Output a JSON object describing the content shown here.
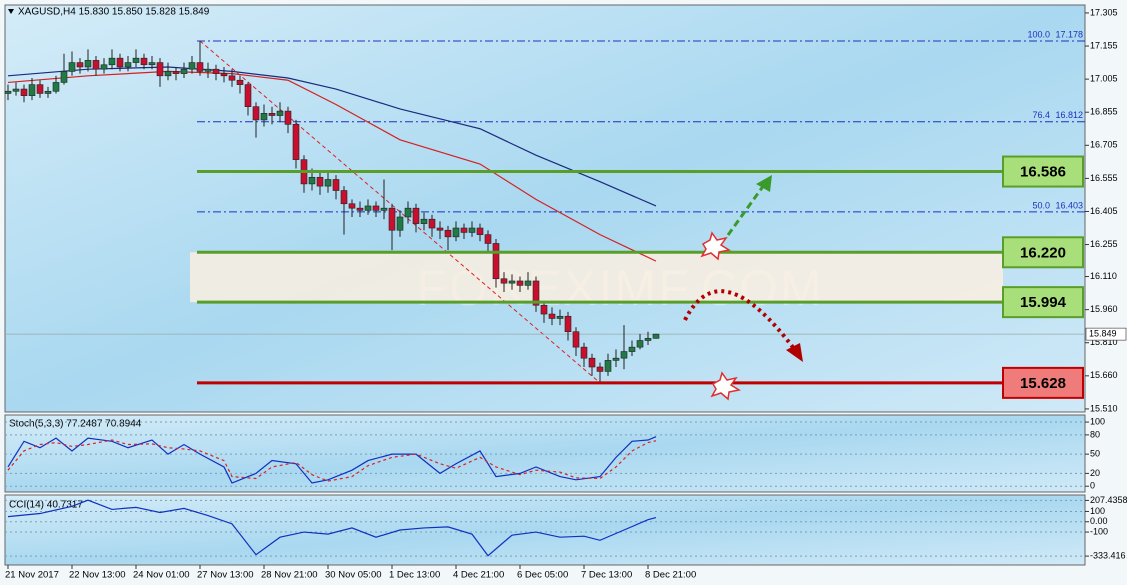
{
  "chart_data": [
    {
      "type": "candlestick",
      "title": "XAGUSD,H4  15.830 15.850 15.828 15.849",
      "watermark": "FOREXIMF.COM",
      "categories": [
        "21 Nov 2017",
        null,
        null,
        null,
        null,
        null,
        null,
        null,
        "22 Nov 13:00",
        null,
        null,
        null,
        null,
        null,
        null,
        null,
        "24 Nov 01:00",
        null,
        null,
        null,
        null,
        null,
        null,
        null,
        "27 Nov 13:00",
        null,
        null,
        null,
        null,
        null,
        null,
        null,
        "28 Nov 21:00",
        null,
        null,
        null,
        null,
        null,
        null,
        null,
        "30 Nov 05:00",
        null,
        null,
        null,
        null,
        null,
        null,
        null,
        "1 Dec 13:00",
        null,
        null,
        null,
        null,
        null,
        null,
        null,
        "4 Dec 21:00",
        null,
        null,
        null,
        null,
        null,
        null,
        null,
        "6 Dec 05:00",
        null,
        null,
        null,
        null,
        null,
        null,
        null,
        "7 Dec 13:00",
        null,
        null,
        null,
        null,
        null,
        null,
        null,
        "8 Dec 21:00",
        null
      ],
      "open": [
        16.94,
        16.95,
        16.96,
        16.93,
        16.98,
        16.94,
        16.95,
        16.99,
        17.04,
        17.08,
        17.06,
        17.09,
        17.05,
        17.07,
        17.1,
        17.06,
        17.08,
        17.1,
        17.07,
        17.08,
        17.02,
        17.04,
        17.03,
        17.05,
        17.08,
        17.04,
        17.05,
        17.03,
        17.02,
        17,
        16.98,
        16.88,
        16.82,
        16.85,
        16.84,
        16.86,
        16.8,
        16.64,
        16.53,
        16.56,
        16.52,
        16.55,
        16.5,
        16.44,
        16.42,
        16.41,
        16.43,
        16.41,
        16.42,
        16.32,
        16.38,
        16.42,
        16.35,
        16.37,
        16.33,
        16.32,
        16.29,
        16.33,
        16.31,
        16.33,
        16.3,
        16.26,
        16.1,
        16.08,
        16.09,
        16.07,
        16.09,
        15.98,
        15.94,
        15.92,
        15.93,
        15.86,
        15.79,
        15.74,
        15.7,
        15.68,
        15.73,
        15.74,
        15.77,
        15.79,
        15.82,
        15.83
      ],
      "high": [
        16.98,
        16.99,
        16.98,
        17.01,
        17,
        16.97,
        17.02,
        17.12,
        17.13,
        17.1,
        17.14,
        17.11,
        17.1,
        17.14,
        17.12,
        17.11,
        17.14,
        17.12,
        17.11,
        17.1,
        17.08,
        17.06,
        17.08,
        17.11,
        17.178,
        17.08,
        17.07,
        17.06,
        17.05,
        17.02,
        16.99,
        16.9,
        16.89,
        16.88,
        16.9,
        16.88,
        16.82,
        16.66,
        16.6,
        16.58,
        16.58,
        16.57,
        16.52,
        16.46,
        16.45,
        16.46,
        16.45,
        16.55,
        16.44,
        16.41,
        16.45,
        16.44,
        16.4,
        16.39,
        16.36,
        16.34,
        16.36,
        16.35,
        16.36,
        16.35,
        16.32,
        16.28,
        16.13,
        16.12,
        16.11,
        16.13,
        16.11,
        16,
        15.97,
        15.96,
        15.95,
        15.88,
        15.81,
        15.76,
        15.72,
        15.76,
        15.78,
        15.89,
        15.82,
        15.85,
        15.86,
        15.85
      ],
      "low": [
        16.91,
        16.93,
        16.9,
        16.91,
        16.92,
        16.92,
        16.94,
        16.98,
        17.02,
        17.03,
        17.04,
        17.02,
        17.03,
        17.05,
        17.04,
        17.04,
        17.06,
        17.05,
        17.05,
        16.97,
        17,
        17,
        17.01,
        17.03,
        17.02,
        17.01,
        17,
        16.99,
        16.97,
        16.94,
        16.84,
        16.74,
        16.79,
        16.8,
        16.81,
        16.76,
        16.6,
        16.49,
        16.5,
        16.48,
        16.49,
        16.46,
        16.3,
        16.38,
        16.38,
        16.39,
        16.38,
        16.37,
        16.23,
        16.29,
        16.35,
        16.31,
        16.32,
        16.29,
        16.28,
        16.23,
        16.27,
        16.28,
        16.29,
        16.27,
        16.22,
        16.06,
        16.04,
        16.05,
        16.04,
        16.05,
        15.95,
        15.9,
        15.89,
        15.89,
        15.82,
        15.75,
        15.7,
        15.66,
        15.628,
        15.66,
        15.7,
        15.69,
        15.75,
        15.78,
        15.8,
        15.828
      ],
      "close": [
        16.95,
        16.96,
        16.93,
        16.98,
        16.94,
        16.95,
        16.99,
        17.04,
        17.08,
        17.06,
        17.09,
        17.05,
        17.07,
        17.1,
        17.06,
        17.08,
        17.1,
        17.07,
        17.08,
        17.02,
        17.04,
        17.03,
        17.05,
        17.08,
        17.04,
        17.05,
        17.03,
        17.02,
        17,
        16.98,
        16.88,
        16.82,
        16.85,
        16.84,
        16.86,
        16.8,
        16.64,
        16.53,
        16.56,
        16.52,
        16.55,
        16.5,
        16.44,
        16.42,
        16.41,
        16.43,
        16.41,
        16.42,
        16.32,
        16.38,
        16.42,
        16.35,
        16.37,
        16.33,
        16.32,
        16.29,
        16.33,
        16.31,
        16.33,
        16.3,
        16.26,
        16.1,
        16.08,
        16.09,
        16.07,
        16.09,
        15.98,
        15.94,
        15.92,
        15.93,
        15.86,
        15.79,
        15.74,
        15.7,
        15.68,
        15.73,
        15.74,
        15.77,
        15.79,
        15.82,
        15.83,
        15.849
      ],
      "bull_color": "#1f7a45",
      "bear_color": "#c8102e",
      "series": [
        {
          "color": "#d42020",
          "x": [
            0,
            10,
            20,
            28,
            35,
            41,
            49,
            59,
            66,
            74,
            81
          ],
          "values": [
            16.99,
            17.02,
            17.04,
            17.03,
            17,
            16.89,
            16.73,
            16.62,
            16.46,
            16.3,
            16.18
          ]
        },
        {
          "color": "#1a2a80",
          "x": [
            0,
            10,
            20,
            28,
            35,
            41,
            49,
            59,
            66,
            74,
            81
          ],
          "values": [
            17.02,
            17.05,
            17.06,
            17.04,
            17.01,
            16.96,
            16.87,
            16.78,
            16.66,
            16.54,
            16.43
          ]
        }
      ],
      "last_price": 15.849,
      "levels": {
        "values": [
          16.586,
          16.22,
          15.994,
          15.628
        ],
        "value_labels": [
          "16.586",
          "16.220",
          "15.994",
          "15.628"
        ],
        "colors": [
          "#5a9e2a",
          "#5a9e2a",
          "#5a9e2a",
          "#c00000"
        ],
        "fills": [
          "#a9df7a",
          "#a9df7a",
          "#a9df7a",
          "#f07b7b"
        ]
      },
      "fib_levels": [
        {
          "label": "100.0",
          "value": 17.178
        },
        {
          "label": "76.4",
          "value": 16.812
        },
        {
          "label": "50.0",
          "value": 16.403
        }
      ],
      "fib_color": "#2030c0",
      "ylim": [
        15.496,
        17.341
      ],
      "yticks": [
        17.305,
        17.155,
        17.005,
        16.855,
        16.705,
        16.555,
        16.405,
        16.255,
        {
          "value": 16.11,
          "label": "16.110"
        },
        {
          "value": 15.96,
          "label": "15.960"
        },
        {
          "value": 15.81,
          "label": "15.810"
        },
        {
          "value": 15.66,
          "label": "15.660"
        },
        {
          "value": 15.51,
          "label": "15.510"
        }
      ],
      "grid": false
    },
    {
      "type": "line",
      "title": "Stoch(5,3,3) 77.2487 70.8944",
      "series": [
        {
          "color": "#1030c0",
          "dash": false,
          "x": [
            0,
            2,
            4,
            6,
            8,
            10,
            13,
            15,
            18,
            20,
            22,
            24,
            27,
            28,
            31,
            33,
            36,
            38,
            40,
            43,
            45,
            48,
            51,
            54,
            56,
            59,
            61,
            64,
            66,
            69,
            71,
            74,
            76,
            78,
            80,
            81
          ],
          "values": [
            30,
            70,
            60,
            75,
            55,
            75,
            70,
            60,
            72,
            50,
            65,
            50,
            30,
            5,
            20,
            40,
            35,
            5,
            10,
            25,
            40,
            50,
            50,
            20,
            35,
            55,
            15,
            20,
            30,
            15,
            10,
            15,
            45,
            70,
            72,
            77.2487
          ]
        },
        {
          "color": "#e02020",
          "dash": true,
          "x": [
            0,
            2,
            4,
            6,
            8,
            10,
            13,
            15,
            18,
            20,
            22,
            24,
            27,
            28,
            31,
            33,
            36,
            38,
            40,
            43,
            45,
            48,
            51,
            54,
            56,
            59,
            61,
            64,
            66,
            69,
            71,
            74,
            76,
            78,
            80,
            81
          ],
          "values": [
            25,
            55,
            65,
            68,
            62,
            65,
            72,
            65,
            66,
            60,
            58,
            55,
            40,
            15,
            12,
            30,
            37,
            18,
            8,
            15,
            32,
            45,
            50,
            35,
            28,
            45,
            30,
            18,
            25,
            22,
            13,
            12,
            30,
            55,
            68,
            70.8944
          ]
        }
      ],
      "ylim": [
        -9,
        111
      ],
      "yticks": [
        0,
        20,
        50,
        80,
        100
      ],
      "grid": true
    },
    {
      "type": "line",
      "title": "CCI(14) 40.7317",
      "series": [
        {
          "color": "#1030c0",
          "dash": false,
          "x": [
            0,
            4,
            8,
            10,
            13,
            16,
            19,
            22,
            25,
            28,
            31,
            34,
            37,
            40,
            43,
            46,
            49,
            52,
            55,
            58,
            60,
            63,
            66,
            69,
            72,
            74,
            77,
            80,
            81
          ],
          "values": [
            50,
            80,
            150,
            210,
            120,
            140,
            90,
            130,
            60,
            -20,
            -320,
            -150,
            -100,
            -120,
            -60,
            -150,
            -80,
            -60,
            -50,
            -120,
            -330,
            -130,
            -100,
            -150,
            -140,
            -180,
            -80,
            20,
            40.7317
          ]
        }
      ],
      "ylim": [
        -420,
        260
      ],
      "yticks": [
        207.4358,
        100,
        {
          "value": 0,
          "label": "0.00"
        },
        -100,
        -333.416
      ],
      "grid": true
    }
  ]
}
